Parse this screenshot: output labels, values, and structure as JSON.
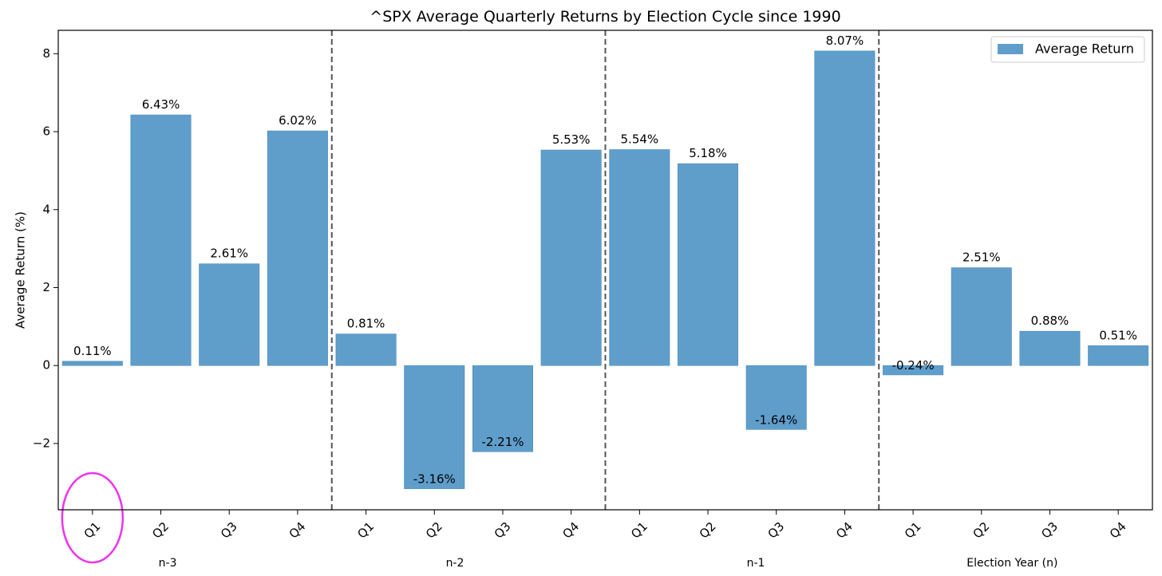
{
  "chart_data": {
    "type": "bar",
    "title": "^SPX Average Quarterly Returns by Election Cycle since 1990",
    "ylabel": "Average Return (%)",
    "xlabel": "",
    "ylim": [
      -3.7,
      8.6
    ],
    "yticks": [
      -2,
      0,
      2,
      4,
      6,
      8
    ],
    "ytick_labels": [
      "−2",
      "0",
      "2",
      "4",
      "6",
      "8"
    ],
    "categories": [
      "Q1",
      "Q2",
      "Q3",
      "Q4",
      "Q1",
      "Q2",
      "Q3",
      "Q4",
      "Q1",
      "Q2",
      "Q3",
      "Q4",
      "Q1",
      "Q2",
      "Q3",
      "Q4"
    ],
    "groups": [
      "n-3",
      "n-2",
      "n-1",
      "Election Year (n)"
    ],
    "series": [
      {
        "name": "Average Return",
        "color": "#5f9ecb",
        "values": [
          0.11,
          6.43,
          2.61,
          6.02,
          0.81,
          -3.16,
          -2.21,
          5.53,
          5.54,
          5.18,
          -1.64,
          8.07,
          -0.24,
          2.51,
          0.88,
          0.51
        ],
        "labels": [
          "0.11%",
          "6.43%",
          "2.61%",
          "6.02%",
          "0.81%",
          "-3.16%",
          "-2.21%",
          "5.53%",
          "5.54%",
          "5.18%",
          "-1.64%",
          "8.07%",
          "-0.24%",
          "2.51%",
          "0.88%",
          "0.51%"
        ]
      }
    ],
    "legend": {
      "position": "top-right"
    },
    "grid": false,
    "separators": "dashed vertical lines between cycle years",
    "highlight": {
      "category_index": 0,
      "shape": "ellipse",
      "color": "#ee33ee"
    }
  }
}
